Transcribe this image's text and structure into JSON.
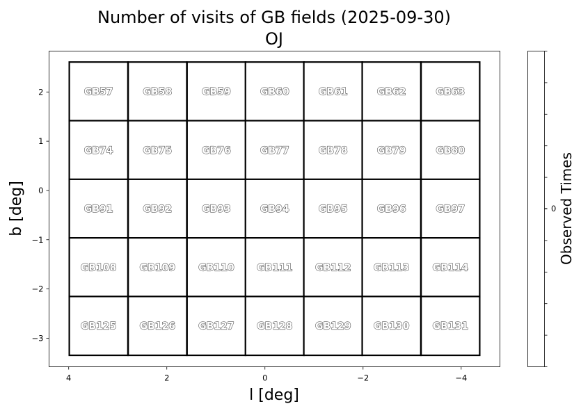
{
  "chart_data": {
    "type": "heatmap",
    "title": "Number of visits of GB fields (2025-09-30)",
    "subtitle": "OJ",
    "xlabel": "l [deg]",
    "ylabel": "b [deg]",
    "xlim": [
      4.4,
      -4.79
    ],
    "ylim": [
      -3.58,
      2.83
    ],
    "xticks": [
      4,
      2,
      0,
      -2,
      -4
    ],
    "xtick_labels": [
      "4",
      "2",
      "0",
      "−2",
      "−4"
    ],
    "yticks": [
      2,
      1,
      0,
      -1,
      -2,
      -3
    ],
    "ytick_labels": [
      "2",
      "1",
      "0",
      "−1",
      "−2",
      "−3"
    ],
    "grid": false,
    "cell_size_deg": 1.195,
    "column_centers_l": [
      3.39,
      2.19,
      0.99,
      -0.2,
      -1.39,
      -2.58,
      -3.78
    ],
    "row_centers_b": [
      2.01,
      0.82,
      -0.37,
      -1.56,
      -2.75
    ],
    "fields": [
      [
        "GB57",
        "GB58",
        "GB59",
        "GB60",
        "GB61",
        "GB62",
        "GB63"
      ],
      [
        "GB74",
        "GB75",
        "GB76",
        "GB77",
        "GB78",
        "GB79",
        "GB80"
      ],
      [
        "GB91",
        "GB92",
        "GB93",
        "GB94",
        "GB95",
        "GB96",
        "GB97"
      ],
      [
        "GB108",
        "GB109",
        "GB110",
        "GB111",
        "GB112",
        "GB113",
        "GB114"
      ],
      [
        "GB125",
        "GB126",
        "GB127",
        "GB128",
        "GB129",
        "GB130",
        "GB131"
      ]
    ],
    "visits": [
      [
        0,
        0,
        0,
        0,
        0,
        0,
        0
      ],
      [
        0,
        0,
        0,
        0,
        0,
        0,
        0
      ],
      [
        0,
        0,
        0,
        0,
        0,
        0,
        0
      ],
      [
        0,
        0,
        0,
        0,
        0,
        0,
        0
      ],
      [
        0,
        0,
        0,
        0,
        0,
        0,
        0
      ]
    ],
    "colorbar": {
      "label": "Observed Times",
      "ticks": [
        0
      ],
      "tick_labels": [
        "0"
      ],
      "color": "#ffffff"
    },
    "cell_fill": "#ffffff",
    "cell_edge": "#000000"
  }
}
